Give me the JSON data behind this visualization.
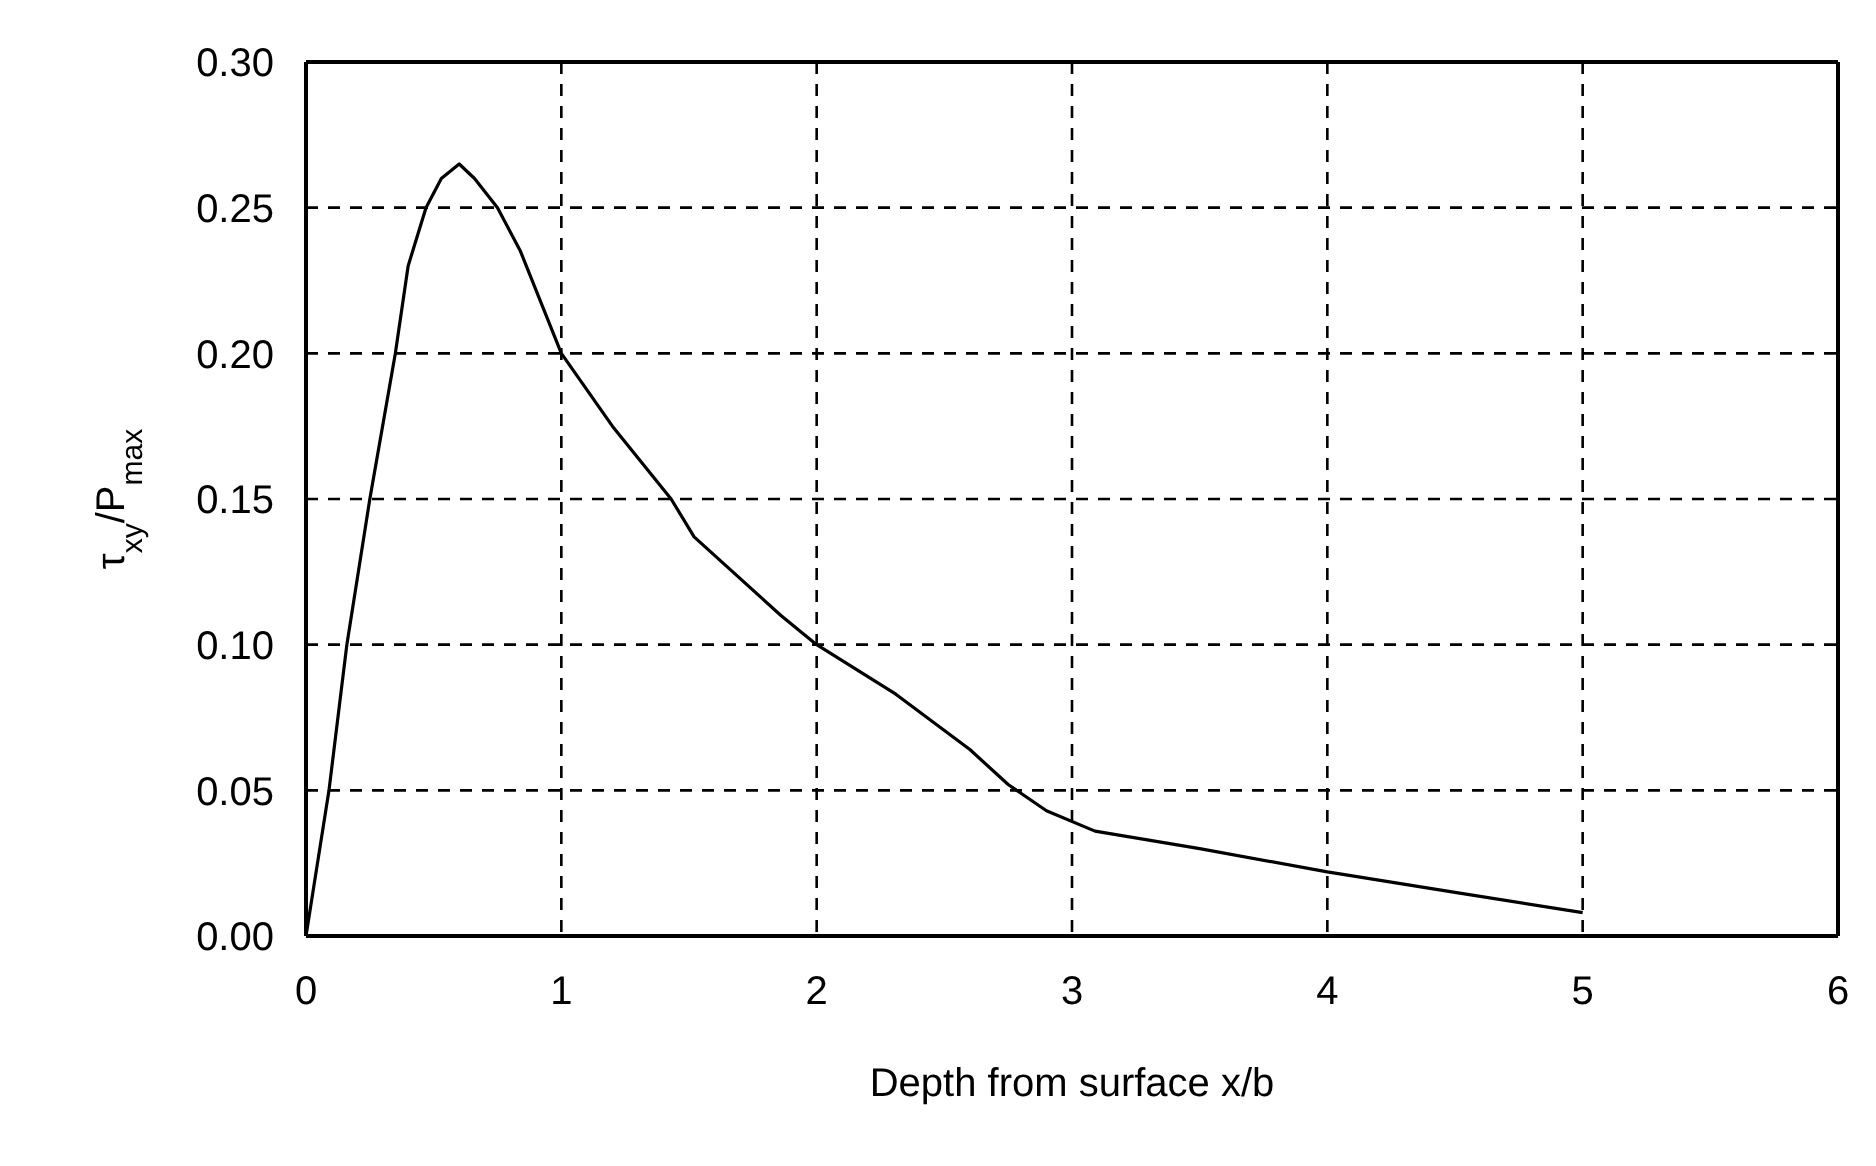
{
  "chart_data": {
    "type": "line",
    "xlabel": "Depth from surface x/b",
    "ylabel": "τ$_{xy}$/P$_{max}$",
    "series": [
      {
        "color": "#000000",
        "x": [
          0,
          0.09,
          0.16,
          0.25,
          0.35,
          0.4,
          0.47,
          0.53,
          0.6,
          0.66,
          0.75,
          0.84,
          1.0,
          1.2,
          1.43,
          1.52,
          1.86,
          2.0,
          2.31,
          2.6,
          2.75,
          2.9,
          3.09,
          3.5,
          4.0,
          4.5,
          5.0
        ],
        "values": [
          0,
          0.05,
          0.1,
          0.15,
          0.2,
          0.23,
          0.25,
          0.26,
          0.265,
          0.26,
          0.25,
          0.235,
          0.2,
          0.175,
          0.15,
          0.137,
          0.11,
          0.1,
          0.083,
          0.064,
          0.052,
          0.043,
          0.036,
          0.03,
          0.022,
          0.015,
          0.008
        ]
      }
    ],
    "xlim": [
      0,
      6
    ],
    "xticks": [
      0,
      1,
      2,
      3,
      4,
      5,
      6
    ],
    "ylim": [
      0,
      0.3
    ],
    "yticks": [
      {
        "value": 0,
        "label": "0.00"
      },
      {
        "value": 0.05,
        "label": "0.05"
      },
      {
        "value": 0.1,
        "label": "0.10"
      },
      {
        "value": 0.15,
        "label": "0.15"
      },
      {
        "value": 0.2,
        "label": "0.20"
      },
      {
        "value": 0.25,
        "label": "0.25"
      },
      {
        "value": 0.3,
        "label": "0.30"
      }
    ],
    "grid": true,
    "marker": "none",
    "line_style": "solid"
  }
}
